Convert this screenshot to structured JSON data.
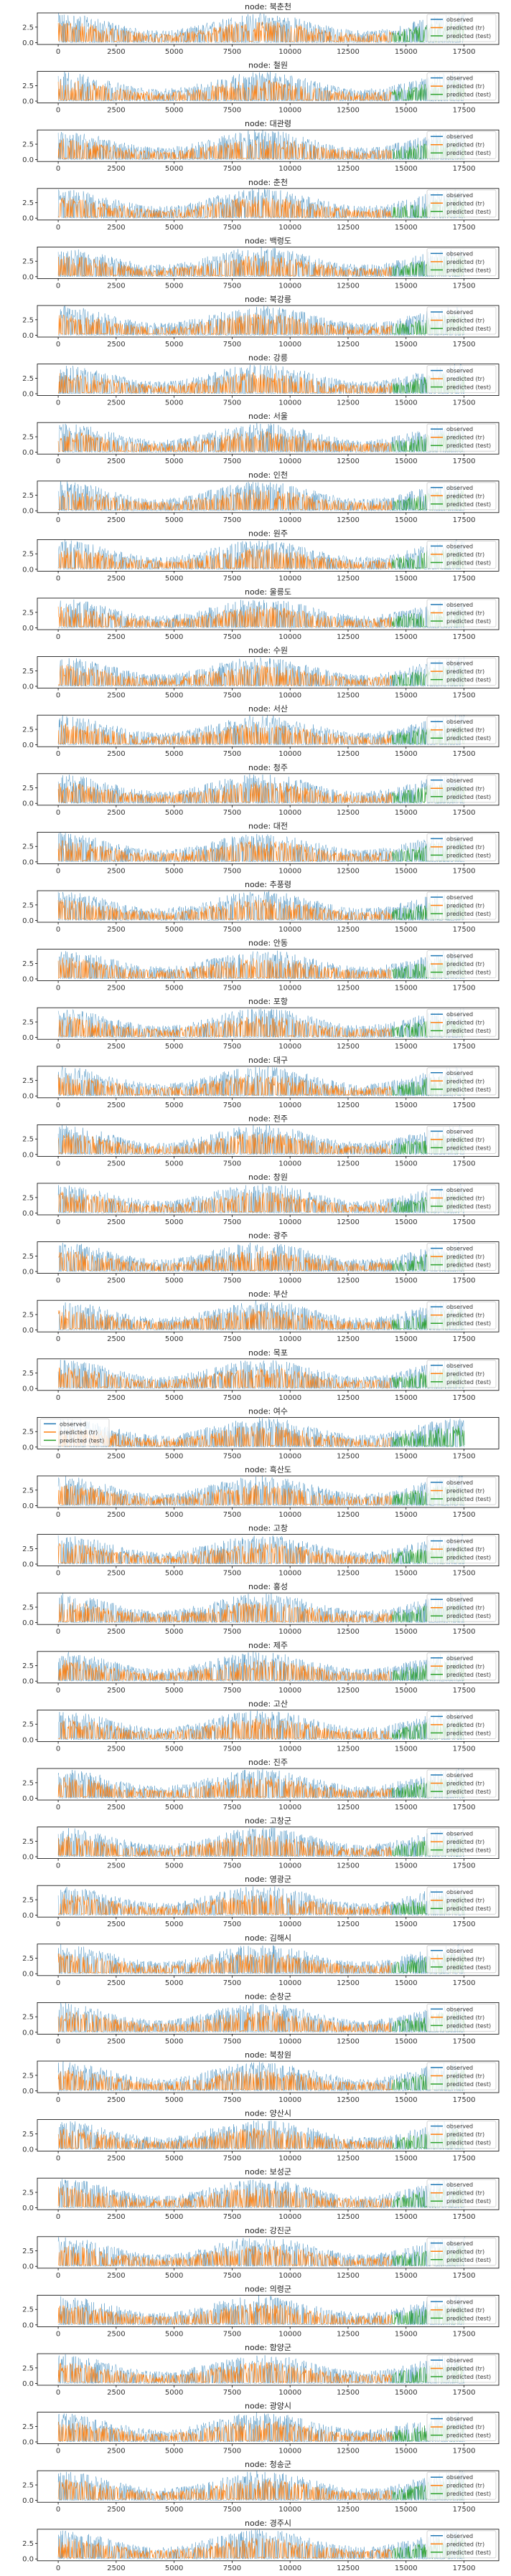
{
  "figure": {
    "colors": {
      "observed": "#1f77b4",
      "train": "#ff7f0e",
      "test": "#2ca02c",
      "frame": "#000000"
    }
  },
  "chart_data": {
    "type": "line",
    "subplot_title_prefix": "node: ",
    "nodes": [
      "북춘천",
      "철원",
      "대관령",
      "춘천",
      "백령도",
      "북강릉",
      "강릉",
      "서울",
      "인천",
      "원주",
      "울릉도",
      "수원",
      "서산",
      "청주",
      "대전",
      "추풍령",
      "안동",
      "포항",
      "대구",
      "전주",
      "창원",
      "광주",
      "부산",
      "목포",
      "여수",
      "흑산도",
      "고창",
      "홍성",
      "제주",
      "고산",
      "진주",
      "고창군",
      "영광군",
      "김해시",
      "순창군",
      "북창원",
      "양산시",
      "보성군",
      "강진군",
      "의령군",
      "함양군",
      "광양시",
      "청송군",
      "경주시"
    ],
    "xlim": [
      -900,
      19000
    ],
    "ylim": [
      -0.3,
      4.8
    ],
    "xticks": [
      0,
      2500,
      5000,
      7500,
      10000,
      12500,
      15000,
      17500
    ],
    "yticks": [
      0.0,
      2.5
    ],
    "ytick_labels": [
      "0.0",
      "2.5"
    ],
    "series": [
      {
        "name": "observed",
        "key": "observed",
        "x_range": [
          0,
          17520
        ],
        "style": "solid-thin"
      },
      {
        "name": "predicted (tr)",
        "key": "train",
        "x_range": [
          0,
          14400
        ],
        "style": "solid"
      },
      {
        "name": "predicted (test)",
        "key": "test",
        "x_range": [
          14400,
          17520
        ],
        "style": "solid"
      }
    ],
    "legend": {
      "entries": [
        "observed",
        "predicted (tr)",
        "predicted (test)"
      ],
      "position": "right",
      "alt_position_node": "여수",
      "alt_position": "left"
    }
  }
}
